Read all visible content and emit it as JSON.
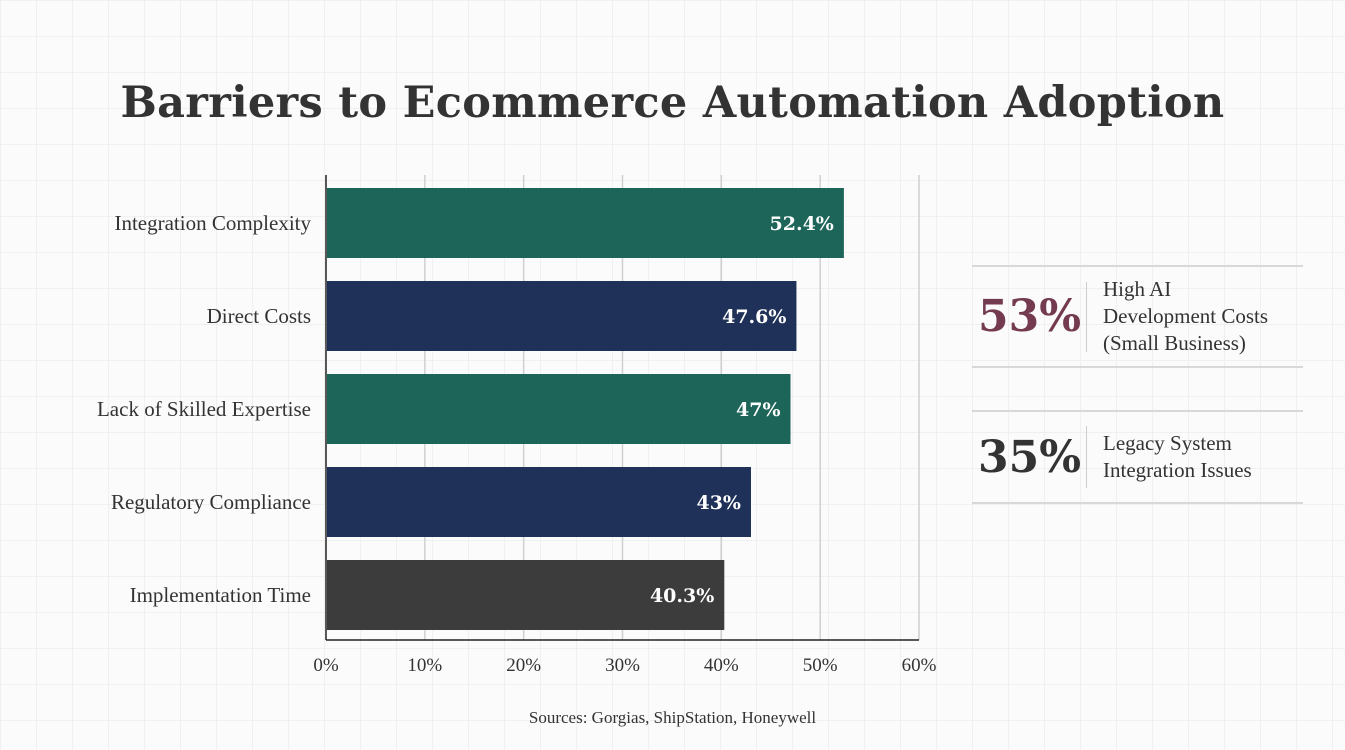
{
  "chart_data": {
    "type": "bar",
    "orientation": "horizontal",
    "title": "Barriers to Ecommerce Automation Adoption",
    "categories": [
      "Integration Complexity",
      "Direct Costs",
      "Lack of Skilled Expertise",
      "Regulatory Compliance",
      "Implementation Time"
    ],
    "values": [
      52.4,
      47.6,
      47,
      43,
      40.3
    ],
    "data_labels": [
      "52.4%",
      "47.6%",
      "47%",
      "43%",
      "40.3%"
    ],
    "colors": [
      "#1d6459",
      "#1f3158",
      "#1d6459",
      "#1f3158",
      "#3c3c3c"
    ],
    "xlim": [
      0,
      60
    ],
    "xticks": [
      "0%",
      "10%",
      "20%",
      "30%",
      "40%",
      "50%",
      "60%"
    ],
    "grid": true,
    "xlabel": "",
    "ylabel": ""
  },
  "callouts": [
    {
      "value": "53%",
      "label_lines": [
        "High AI",
        "Development Costs",
        "(Small Business)"
      ],
      "color": "#733a50"
    },
    {
      "value": "35%",
      "label_lines": [
        "Legacy System",
        "Integration Issues"
      ],
      "color": "#333333"
    }
  ],
  "sources": "Sources: Gorgias, ShipStation, Honeywell"
}
